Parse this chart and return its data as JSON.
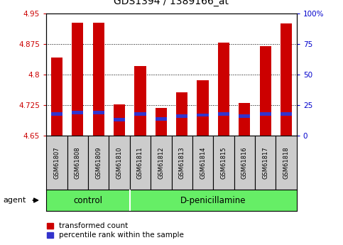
{
  "title": "GDS1394 / 1389166_at",
  "samples": [
    "GSM61807",
    "GSM61808",
    "GSM61809",
    "GSM61810",
    "GSM61811",
    "GSM61812",
    "GSM61813",
    "GSM61814",
    "GSM61815",
    "GSM61816",
    "GSM61817",
    "GSM61818"
  ],
  "red_values": [
    4.843,
    4.928,
    4.927,
    4.727,
    4.822,
    4.718,
    4.757,
    4.786,
    4.878,
    4.73,
    4.87,
    4.925
  ],
  "blue_values": [
    4.7,
    4.703,
    4.703,
    4.686,
    4.7,
    4.688,
    4.695,
    4.697,
    4.7,
    4.695,
    4.7,
    4.7
  ],
  "blue_heights": [
    0.008,
    0.008,
    0.008,
    0.008,
    0.008,
    0.008,
    0.008,
    0.008,
    0.008,
    0.008,
    0.008,
    0.008
  ],
  "ymin": 4.65,
  "ymax": 4.95,
  "yticks": [
    4.65,
    4.725,
    4.8,
    4.875,
    4.95
  ],
  "ytick_labels": [
    "4.65",
    "4.725",
    "4.8",
    "4.875",
    "4.95"
  ],
  "right_ytick_labels": [
    "0",
    "25",
    "50",
    "75",
    "100%"
  ],
  "bar_color": "#cc0000",
  "blue_color": "#3333cc",
  "grid_color": "#000000",
  "axis_label_color_left": "#cc0000",
  "axis_label_color_right": "#0000cc",
  "bg_color": "#ffffff",
  "plot_bg_color": "#ffffff",
  "n_control": 4,
  "control_label": "control",
  "treatment_label": "D-penicillamine",
  "agent_label": "agent",
  "group_bg_color": "#66ee66",
  "tick_bg_color": "#cccccc",
  "legend_red_label": "transformed count",
  "legend_blue_label": "percentile rank within the sample",
  "bar_width": 0.55
}
